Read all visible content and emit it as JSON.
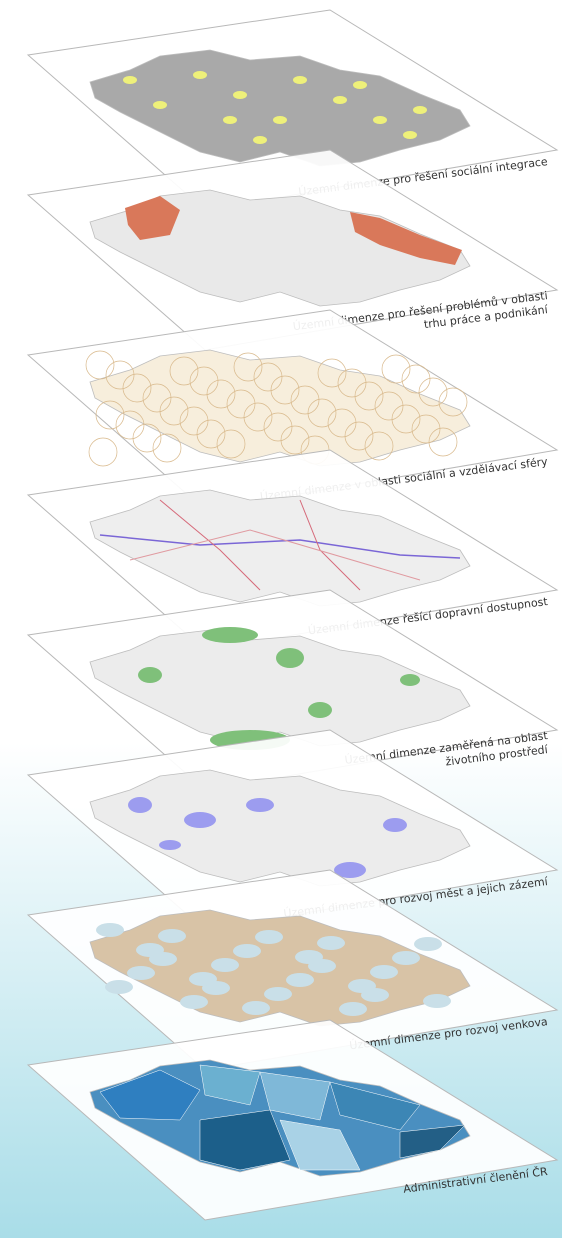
{
  "layers": [
    {
      "label": [
        "Územní dimenze pro řešení sociální integrace"
      ]
    },
    {
      "label": [
        "Územní dimenze pro řešení problémů v oblasti",
        "trhu práce a podnikání"
      ]
    },
    {
      "label": [
        "Územní dimenze v oblasti sociální a vzdělávací sféry"
      ]
    },
    {
      "label": [
        "Územní dimenze řešící dopravní dostupnost"
      ]
    },
    {
      "label": [
        "Územní dimenze zaměřená na oblast",
        "životního prostředí"
      ]
    },
    {
      "label": [
        "Územní dimenze pro rozvoj měst a jejich zázemí"
      ]
    },
    {
      "label": [
        "Územní dimenze pro rozvoj venkova"
      ]
    },
    {
      "label": [
        "Administrativní členění ČR"
      ]
    }
  ]
}
